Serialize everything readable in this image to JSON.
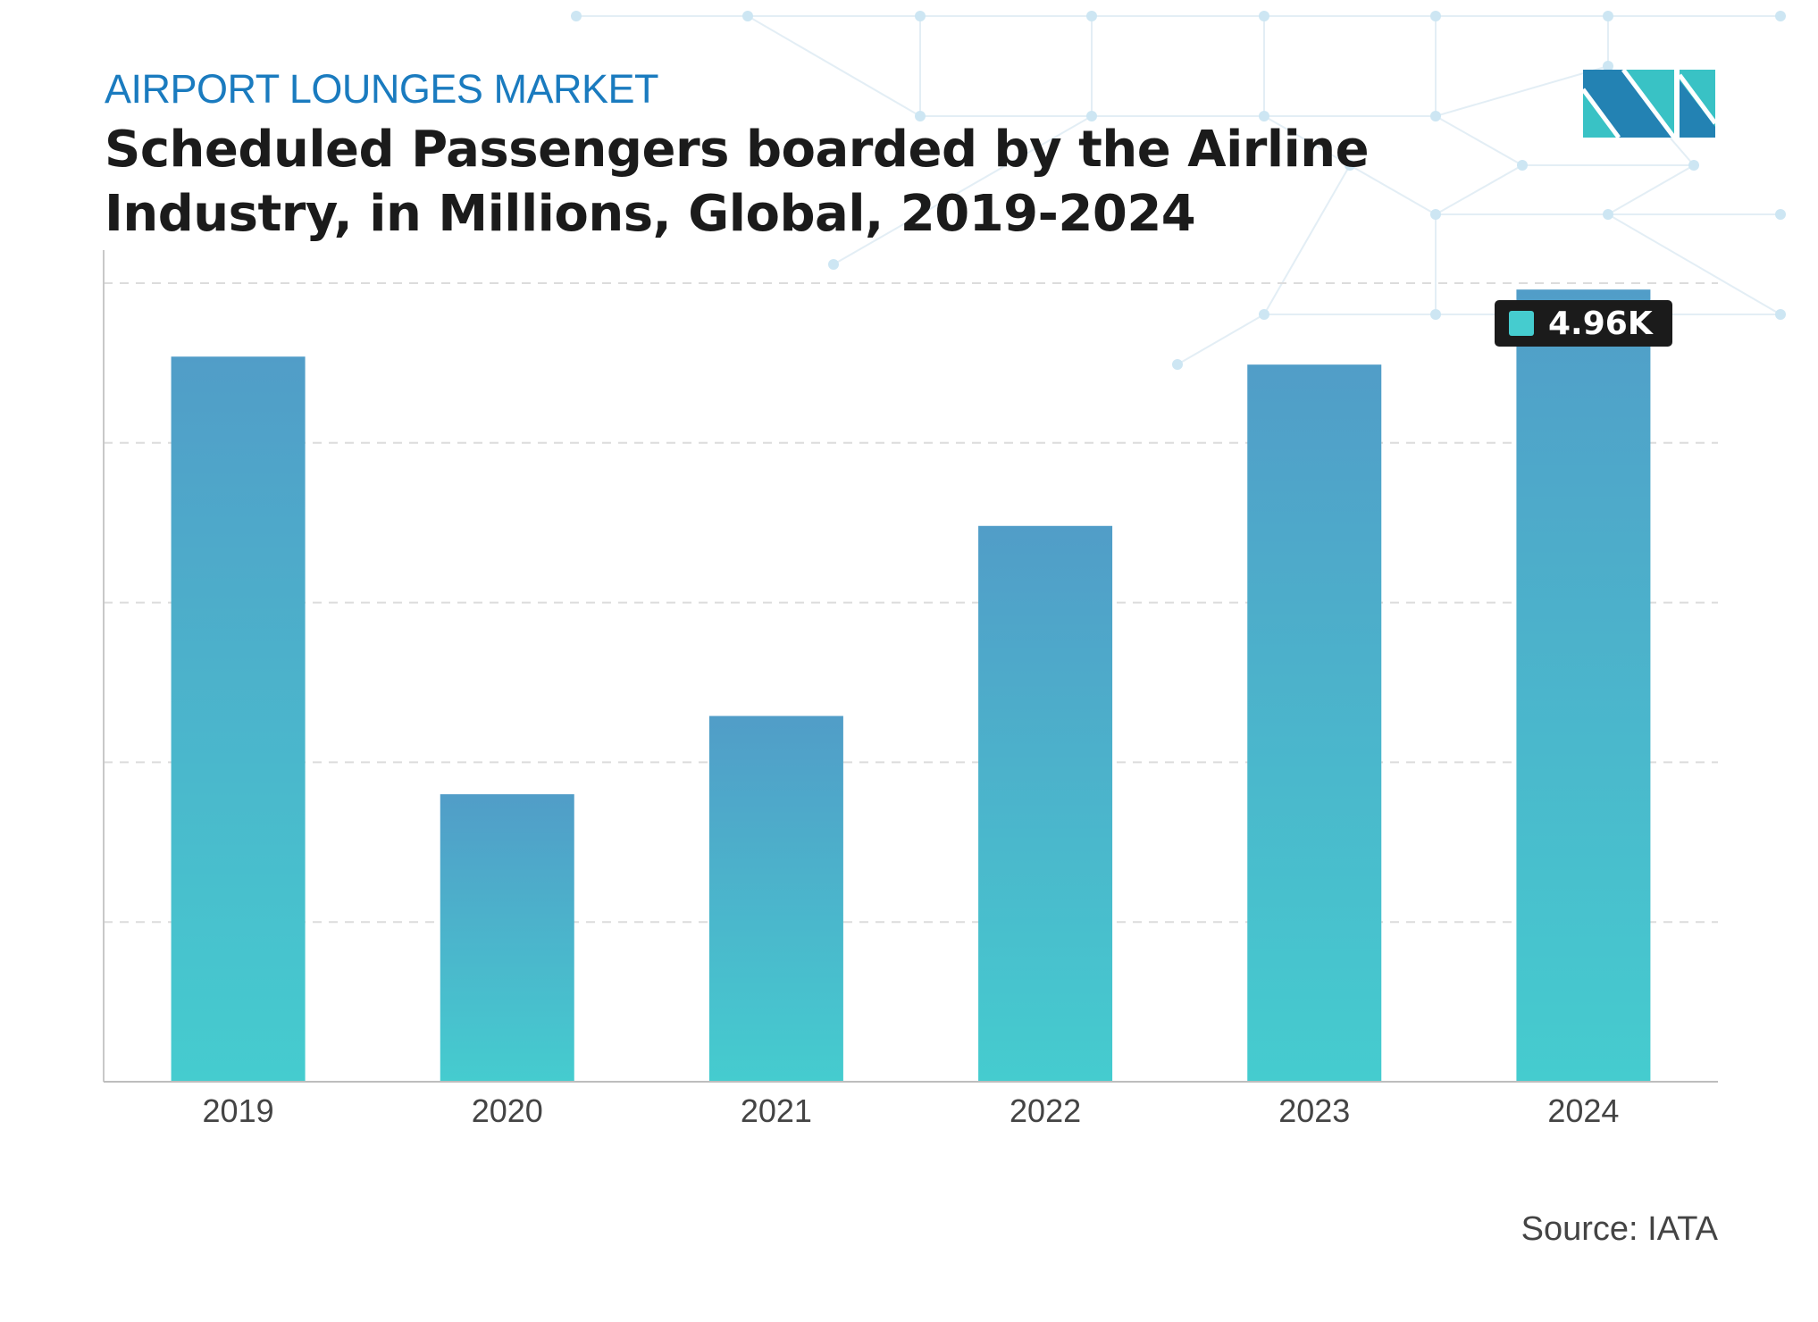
{
  "header": {
    "kicker": "AIRPORT LOUNGES MARKET",
    "title": "Scheduled Passengers boarded by the Airline Industry, in Millions, Global, 2019-2024"
  },
  "source": "Source: IATA",
  "tooltip": {
    "value": "4.96K",
    "category": "2024"
  },
  "colors": {
    "kicker": "#1a7bbf",
    "bar_top": "#519dc8",
    "bar_bottom": "#45cccf",
    "logo_dark": "#2382b3",
    "logo_light": "#39c2c5"
  },
  "logo": {
    "name": "mordor-intelligence-logo"
  },
  "chart_data": {
    "type": "bar",
    "title": "Scheduled Passengers boarded by the Airline Industry, in Millions, Global, 2019-2024",
    "categories": [
      "2019",
      "2020",
      "2021",
      "2022",
      "2023",
      "2024"
    ],
    "values": [
      4540,
      1800,
      2290,
      3480,
      4490,
      4960
    ],
    "ylim": [
      0,
      5000
    ],
    "yticks": [
      0,
      1000,
      2000,
      3000,
      4000,
      5000
    ],
    "ytick_labels_shown": false,
    "grid": true,
    "xlabel": "",
    "ylabel": ""
  }
}
